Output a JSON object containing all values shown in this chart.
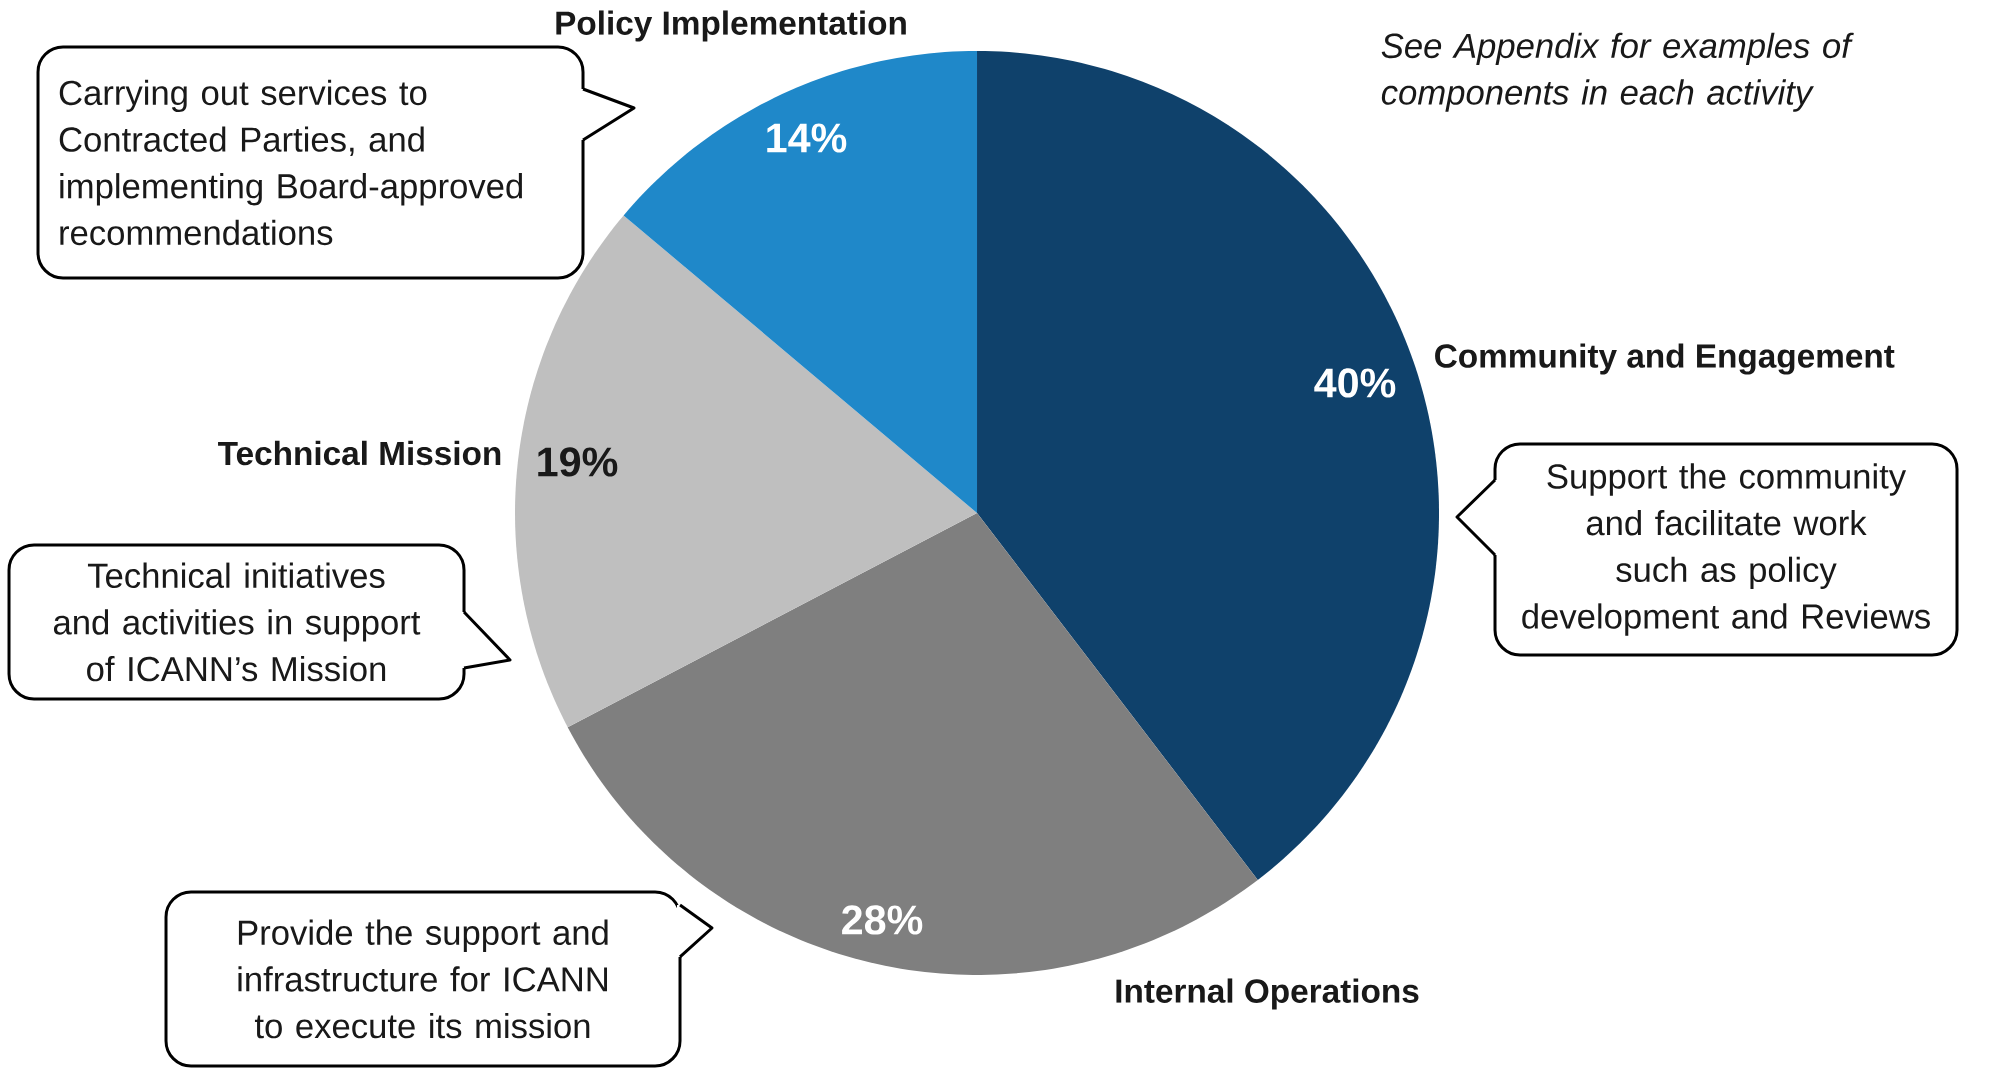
{
  "chart_data": {
    "type": "pie",
    "categories": [
      "Community and Engagement",
      "Internal Operations",
      "Technical Mission",
      "Policy Implementation"
    ],
    "values": [
      40,
      28,
      19,
      14
    ],
    "colors": [
      "#0f416b",
      "#7f7f7f",
      "#bfbfbf",
      "#1f88c9"
    ],
    "value_labels": [
      "40%",
      "28%",
      "19%",
      "14%"
    ],
    "annotations": [
      "*See Appendix for examples of components in each activity*",
      "Carrying out services to Contracted Parties, and implementing Board-approved recommendations",
      "Support the community and facilitate work such as policy development and Reviews",
      "Technical initiatives and activities in support of ICANN’s Mission",
      "Provide the support and infrastructure for ICANN to execute its mission"
    ]
  }
}
